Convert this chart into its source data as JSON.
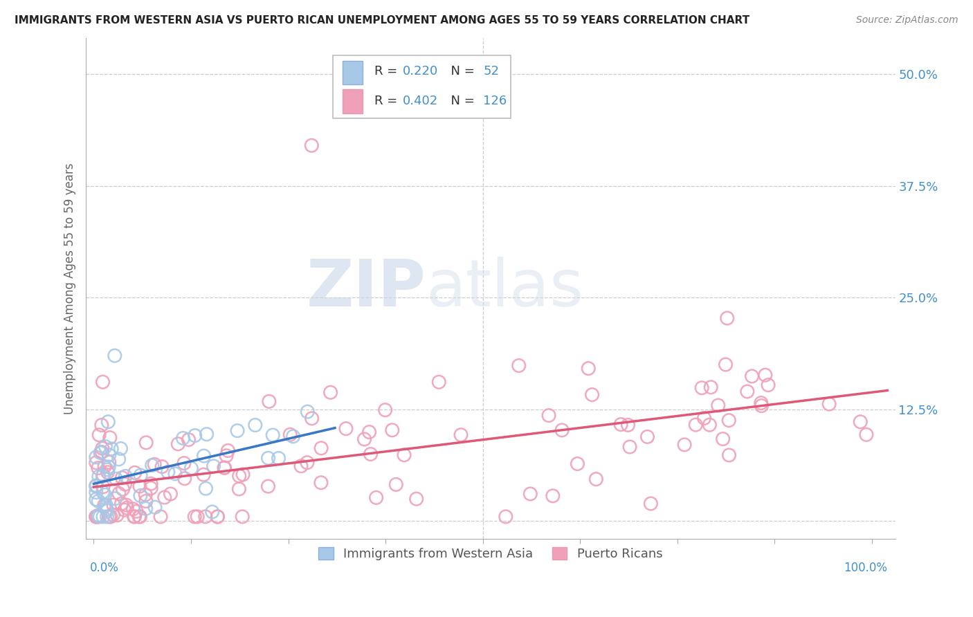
{
  "title": "IMMIGRANTS FROM WESTERN ASIA VS PUERTO RICAN UNEMPLOYMENT AMONG AGES 55 TO 59 YEARS CORRELATION CHART",
  "source": "Source: ZipAtlas.com",
  "ylabel": "Unemployment Among Ages 55 to 59 years",
  "ylim": [
    -0.02,
    0.54
  ],
  "xlim": [
    -0.01,
    1.03
  ],
  "yticks": [
    0.0,
    0.125,
    0.25,
    0.375,
    0.5
  ],
  "ytick_labels": [
    "",
    "12.5%",
    "25.0%",
    "37.5%",
    "50.0%"
  ],
  "watermark_zip": "ZIP",
  "watermark_atlas": "atlas",
  "legend_r1": "R = 0.220",
  "legend_n1": "N =  52",
  "legend_r2": "R = 0.402",
  "legend_n2": "N = 126",
  "color_blue": "#a8c8e8",
  "color_pink": "#f0a0b8",
  "color_blue_dark": "#3878c8",
  "color_pink_dark": "#e05878",
  "color_blue_text": "#4090d0",
  "background_color": "#ffffff",
  "grid_color": "#cccccc"
}
